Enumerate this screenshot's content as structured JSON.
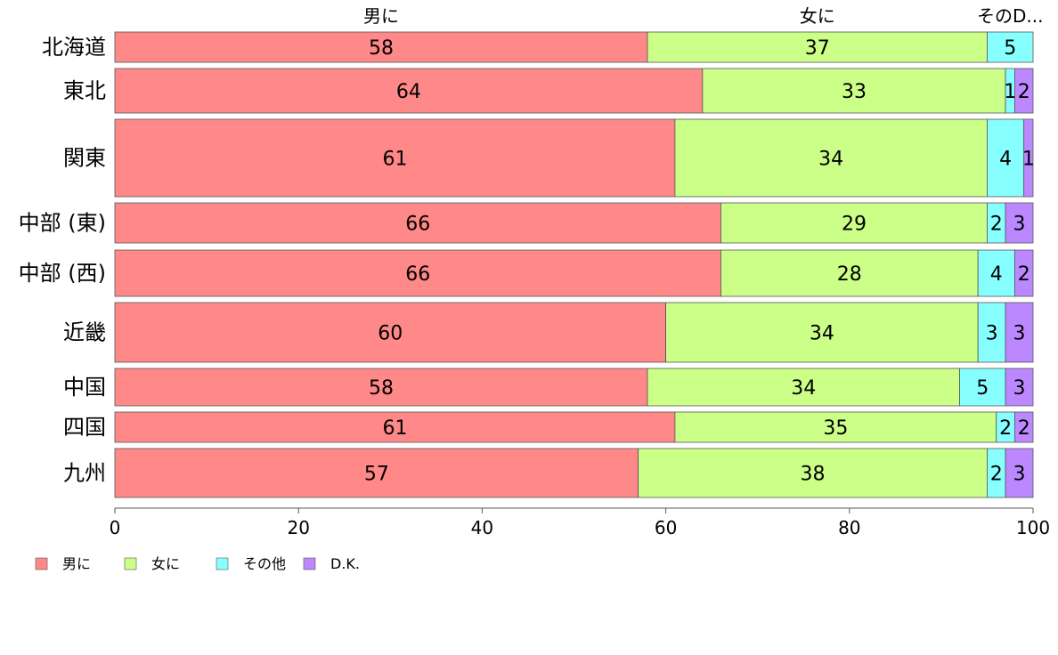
{
  "chart_data": {
    "type": "bar",
    "orientation": "horizontal",
    "stacked": true,
    "categories": [
      "北海道",
      "東北",
      "関東",
      "中部 (東)",
      "中部 (西)",
      "近畿",
      "中国",
      "四国",
      "九州"
    ],
    "series": [
      {
        "name": "男に",
        "short_label": "男に",
        "color": "#ff8888",
        "values": [
          58,
          64,
          61,
          66,
          66,
          60,
          58,
          61,
          57
        ]
      },
      {
        "name": "女に",
        "short_label": "女に",
        "color": "#ccff88",
        "values": [
          37,
          33,
          34,
          29,
          28,
          34,
          34,
          35,
          38
        ]
      },
      {
        "name": "その他",
        "short_label": "そのD...",
        "color": "#88ffff",
        "values": [
          5,
          1,
          4,
          2,
          4,
          3,
          5,
          2,
          2
        ]
      },
      {
        "name": "D.K.",
        "short_label": "",
        "color": "#bb88ff",
        "values": [
          0,
          2,
          1,
          3,
          2,
          3,
          3,
          2,
          3
        ]
      }
    ],
    "xlim": [
      0,
      100
    ],
    "xticks": [
      "0",
      "20",
      "40",
      "60",
      "80",
      "100"
    ],
    "grid": false,
    "legend_position": "bottom-left"
  }
}
